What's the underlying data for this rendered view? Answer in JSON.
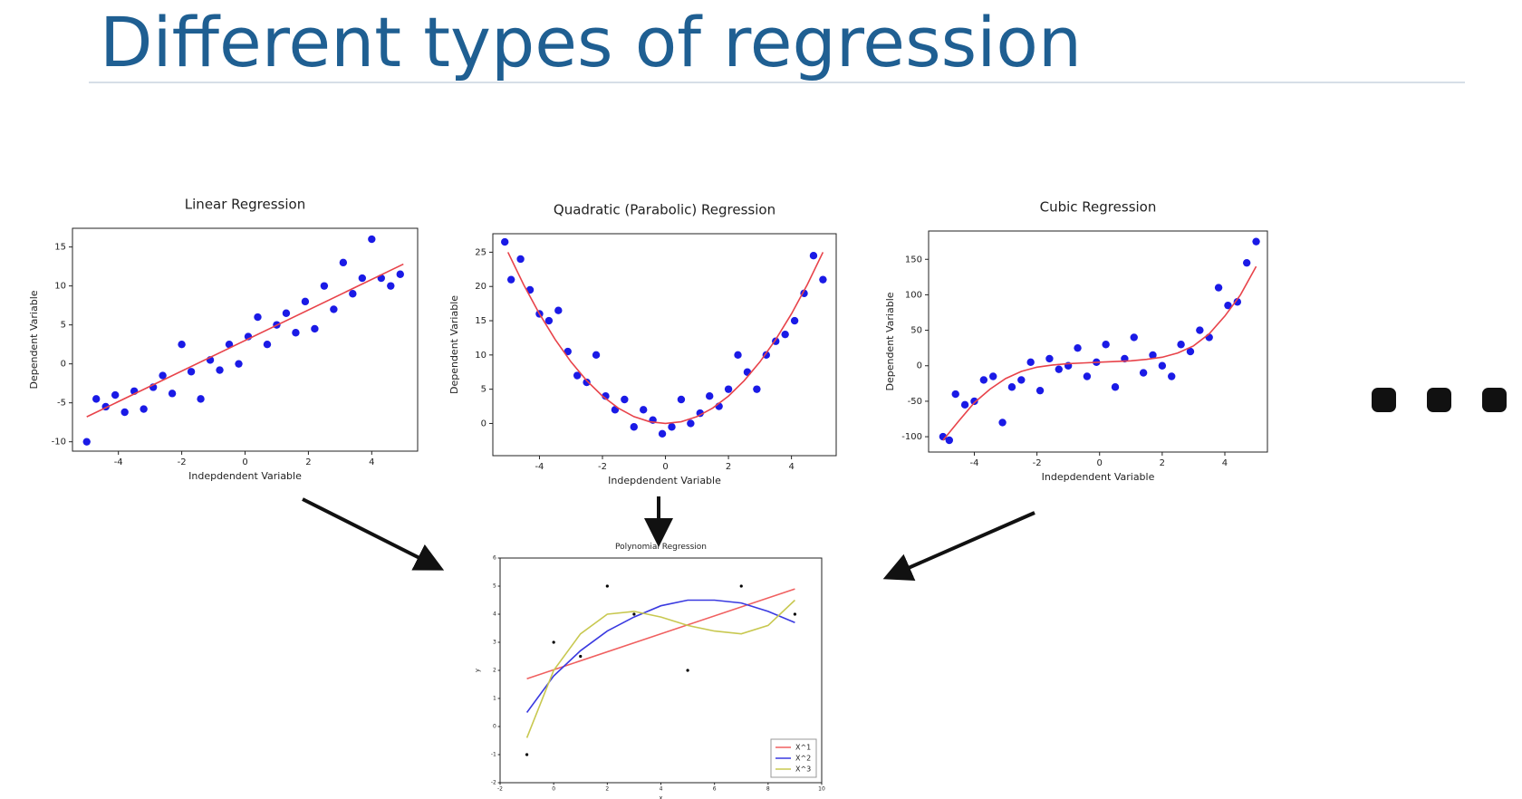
{
  "slide_title": "Different types of regression",
  "chart_data": [
    {
      "type": "scatter",
      "title": "Linear Regression",
      "xlabel": "Indepdendent Variable",
      "ylabel": "Dependent Variable",
      "xlim": [
        -5.45,
        5.45
      ],
      "ylim": [
        -11.2,
        17.4
      ],
      "xticks": [
        -4,
        -2,
        0,
        2,
        4
      ],
      "yticks": [
        -10,
        -5,
        0,
        5,
        10,
        15
      ],
      "series": [
        {
          "type": "scatter",
          "color": "#1a1ae6",
          "x": [
            -5,
            -4.7,
            -4.4,
            -4.1,
            -3.8,
            -3.5,
            -3.2,
            -2.9,
            -2.6,
            -2.3,
            -2,
            -1.7,
            -1.4,
            -1.1,
            -0.8,
            -0.5,
            -0.2,
            0.1,
            0.4,
            0.7,
            1,
            1.3,
            1.6,
            1.9,
            2.2,
            2.5,
            2.8,
            3.1,
            3.4,
            3.7,
            4,
            4.3,
            4.6,
            4.9
          ],
          "values": [
            -10,
            -4.5,
            -5.5,
            -4,
            -6.2,
            -3.5,
            -5.8,
            -3,
            -1.5,
            -3.8,
            2.5,
            -1,
            -4.5,
            0.5,
            -0.8,
            2.5,
            0,
            3.5,
            6,
            2.5,
            5,
            6.5,
            4,
            8,
            4.5,
            10,
            7,
            13,
            9,
            11,
            16,
            11,
            10,
            11.5
          ]
        },
        {
          "type": "line",
          "color": "#e8434a",
          "x": [
            -5,
            5
          ],
          "values": [
            -6.8,
            12.8
          ]
        }
      ]
    },
    {
      "type": "scatter",
      "title": "Quadratic (Parabolic) Regression",
      "xlabel": "Indepdendent Variable",
      "ylabel": "Dependent Variable",
      "xlim": [
        -5.48,
        5.42
      ],
      "ylim": [
        -4.7,
        27.7
      ],
      "xticks": [
        -4,
        -2,
        0,
        2,
        4
      ],
      "yticks": [
        0,
        5,
        10,
        15,
        20,
        25
      ],
      "series": [
        {
          "type": "scatter",
          "color": "#1a1ae6",
          "x": [
            -5.1,
            -4.9,
            -4.6,
            -4.3,
            -4,
            -3.7,
            -3.4,
            -3.1,
            -2.8,
            -2.5,
            -2.2,
            -1.9,
            -1.6,
            -1.3,
            -1,
            -0.7,
            -0.4,
            -0.1,
            0.2,
            0.5,
            0.8,
            1.1,
            1.4,
            1.7,
            2,
            2.3,
            2.6,
            2.9,
            3.2,
            3.5,
            3.8,
            4.1,
            4.4,
            4.7,
            5
          ],
          "values": [
            26.5,
            21,
            24,
            19.5,
            16,
            15,
            16.5,
            10.5,
            7,
            6,
            10,
            4,
            2,
            3.5,
            -0.5,
            2,
            0.5,
            -1.5,
            -0.5,
            3.5,
            0,
            1.5,
            4,
            2.5,
            5,
            10,
            7.5,
            5,
            10,
            12,
            13,
            15,
            19,
            24.5,
            21
          ]
        },
        {
          "type": "line",
          "color": "#e8434a",
          "x": [
            -5,
            -4.5,
            -4,
            -3.5,
            -3,
            -2.5,
            -2,
            -1.5,
            -1,
            -0.5,
            0,
            0.5,
            1,
            1.5,
            2,
            2.5,
            3,
            3.5,
            4,
            4.5,
            5
          ],
          "values": [
            25,
            20.25,
            16,
            12.25,
            9,
            6.25,
            4,
            2.25,
            1,
            0.25,
            0,
            0.25,
            1,
            2.25,
            4,
            6.25,
            9,
            12.25,
            16,
            20.25,
            25
          ]
        }
      ]
    },
    {
      "type": "scatter",
      "title": "Cubic Regression",
      "xlabel": "Indepdendent Variable",
      "ylabel": "Dependent Variable",
      "xlim": [
        -5.46,
        5.36
      ],
      "ylim": [
        -121.6,
        189.9
      ],
      "xticks": [
        -4,
        -2,
        0,
        2,
        4
      ],
      "yticks": [
        -100,
        -50,
        0,
        50,
        100,
        150
      ],
      "series": [
        {
          "type": "scatter",
          "color": "#1a1ae6",
          "x": [
            -5,
            -4.8,
            -4.6,
            -4.3,
            -4,
            -3.7,
            -3.4,
            -3.1,
            -2.8,
            -2.5,
            -2.2,
            -1.9,
            -1.6,
            -1.3,
            -1,
            -0.7,
            -0.4,
            -0.1,
            0.2,
            0.5,
            0.8,
            1.1,
            1.4,
            1.7,
            2,
            2.3,
            2.6,
            2.9,
            3.2,
            3.5,
            3.8,
            4.1,
            4.4,
            4.7,
            5
          ],
          "values": [
            -100,
            -105,
            -40,
            -55,
            -50,
            -20,
            -15,
            -80,
            -30,
            -20,
            5,
            -35,
            10,
            -5,
            0,
            25,
            -15,
            5,
            30,
            -30,
            10,
            40,
            -10,
            15,
            0,
            -15,
            30,
            20,
            50,
            40,
            110,
            85,
            90,
            145,
            175
          ]
        },
        {
          "type": "line",
          "color": "#e8434a",
          "x": [
            -5,
            -4.5,
            -4,
            -3.5,
            -3,
            -2.5,
            -2,
            -1.5,
            -1,
            -0.5,
            0,
            0.5,
            1,
            1.5,
            2,
            2.5,
            3,
            3.5,
            4,
            4.5,
            5
          ],
          "values": [
            -105,
            -78,
            -52,
            -33,
            -18,
            -8,
            -2,
            1,
            3,
            4,
            5,
            6,
            7,
            9,
            12,
            18,
            28,
            45,
            70,
            100,
            140
          ]
        }
      ]
    },
    {
      "type": "scatter",
      "title": "Polynomial Regression",
      "xlabel": "x",
      "ylabel": "y",
      "xlim": [
        -2,
        10
      ],
      "ylim": [
        -2,
        6
      ],
      "xticks": [
        -2,
        0,
        2,
        4,
        6,
        8,
        10
      ],
      "yticks": [
        -2,
        -1,
        0,
        1,
        2,
        3,
        4,
        5,
        6
      ],
      "legend": "lower right",
      "series": [
        {
          "type": "scatter",
          "color": "#000000",
          "x": [
            -1,
            0,
            1,
            2,
            3,
            5,
            7,
            9
          ],
          "values": [
            -1,
            3,
            2.5,
            5,
            4,
            2,
            5,
            4
          ]
        },
        {
          "type": "line",
          "name": "X^1",
          "color": "#f06060",
          "x": [
            -1,
            9
          ],
          "values": [
            1.7,
            4.9
          ]
        },
        {
          "type": "line",
          "name": "X^2",
          "color": "#3a3ae0",
          "x": [
            -1,
            0,
            1,
            2,
            3,
            4,
            5,
            6,
            7,
            8,
            9
          ],
          "values": [
            0.5,
            1.8,
            2.7,
            3.4,
            3.9,
            4.3,
            4.5,
            4.5,
            4.4,
            4.1,
            3.7
          ]
        },
        {
          "type": "line",
          "name": "X^3",
          "color": "#c8c850",
          "x": [
            -1,
            0,
            1,
            2,
            3,
            4,
            5,
            6,
            7,
            8,
            9
          ],
          "values": [
            -0.4,
            2.0,
            3.3,
            4.0,
            4.1,
            3.9,
            3.6,
            3.4,
            3.3,
            3.6,
            4.5
          ]
        }
      ]
    }
  ]
}
